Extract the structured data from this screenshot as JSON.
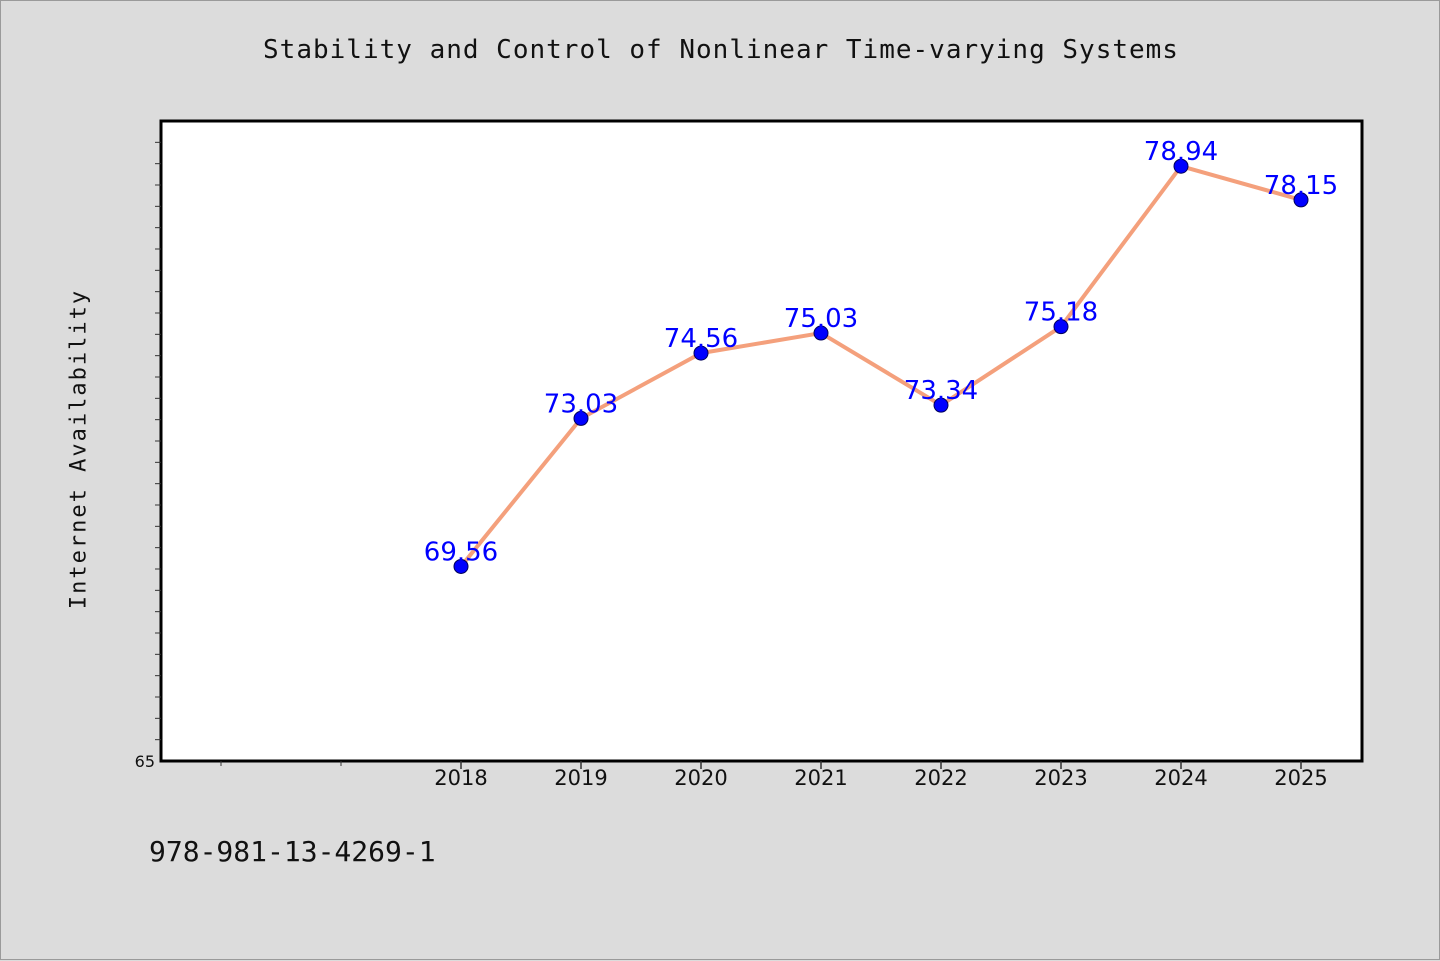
{
  "chart_data": {
    "type": "line",
    "title": "Stability and Control of Nonlinear Time-varying Systems",
    "xlabel": "",
    "ylabel": "Internet Availability",
    "categories": [
      "2018",
      "2019",
      "2020",
      "2021",
      "2022",
      "2023",
      "2024",
      "2025"
    ],
    "series": [
      {
        "values": [
          69.56,
          73.03,
          74.56,
          75.03,
          73.34,
          75.18,
          78.94,
          78.15
        ]
      }
    ],
    "data_labels": [
      "69.56",
      "73.03",
      "74.56",
      "75.03",
      "73.34",
      "75.18",
      "78.94",
      "78.15"
    ],
    "ytick_labels": [
      "65"
    ],
    "ylim": [
      65,
      80
    ],
    "grid": false,
    "line_color": "#f4a07c",
    "marker_color": "#0000ff",
    "label_color": "#0000ff"
  },
  "footer_code": "978-981-13-4269-1"
}
